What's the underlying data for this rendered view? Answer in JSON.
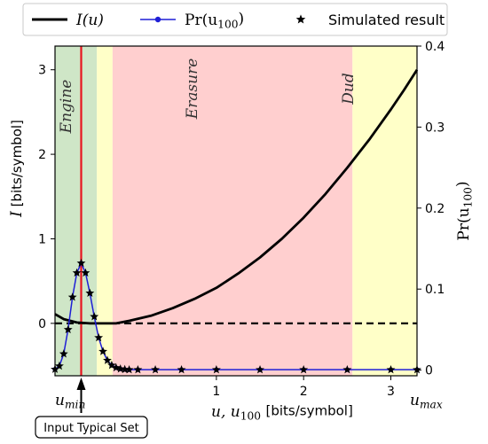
{
  "chart_data": {
    "type": "line",
    "x_range": [
      -0.85,
      3.3
    ],
    "y_left_range": [
      -0.62,
      3.28
    ],
    "y_right_range": [
      -0.007,
      0.4
    ],
    "x_ticks": [
      1,
      2,
      3
    ],
    "y_left_ticks": [
      0,
      1,
      2,
      3
    ],
    "y_right_ticks": [
      0,
      0.1,
      0.2,
      0.3,
      0.4
    ],
    "x_extra_labels": {
      "min": "u",
      "min_sub": "min",
      "max": "u",
      "max_sub": "max"
    },
    "xlabel": {
      "math": "u, u",
      "sub": "100",
      "units": "[bits/symbol]"
    },
    "ylabel_left": {
      "symbol": "I",
      "units": "[bits/symbol]"
    },
    "ylabel_right": {
      "text": "Pr(u",
      "sub": "100",
      "close": ")"
    },
    "regions": [
      {
        "label": "Engine",
        "from": -0.85,
        "to": -0.37,
        "color": "#cfe6c7"
      },
      {
        "label": "",
        "from": -0.37,
        "to": -0.19,
        "color": "#ffffc8"
      },
      {
        "label": "Erasure",
        "from": -0.19,
        "to": 2.56,
        "color": "#ffcfcf"
      },
      {
        "label": "Dud",
        "from": 2.56,
        "to": 3.3,
        "color": "#ffffc8"
      }
    ],
    "vertical_line": {
      "x": -0.55,
      "color": "#e8141f"
    },
    "horizontal_dashed_y": 0,
    "series": [
      {
        "name": "I(u)",
        "legend": {
          "math": "I(u)"
        },
        "color": "#000000",
        "axis": "left",
        "x": [
          -0.85,
          -0.75,
          -0.6,
          -0.45,
          -0.3,
          -0.15,
          0,
          0.25,
          0.5,
          0.75,
          1,
          1.25,
          1.5,
          1.75,
          2,
          2.25,
          2.5,
          2.75,
          3,
          3.15,
          3.3
        ],
        "y": [
          0.11,
          0.05,
          0.01,
          0.0,
          0.0,
          0.0,
          0.03,
          0.09,
          0.18,
          0.29,
          0.42,
          0.59,
          0.78,
          1.0,
          1.25,
          1.53,
          1.84,
          2.17,
          2.53,
          2.76,
          3.0
        ]
      },
      {
        "name": "Pr(u100)",
        "legend": {
          "text": "Pr(u",
          "sub": "100",
          "close": ")"
        },
        "color": "#1f1fd6",
        "axis": "right",
        "x": [
          -0.85,
          -0.8,
          -0.75,
          -0.7,
          -0.65,
          -0.6,
          -0.55,
          -0.5,
          -0.45,
          -0.4,
          -0.35,
          -0.3,
          -0.25,
          -0.2,
          -0.15,
          -0.1,
          -0.05,
          0.0,
          0.1,
          0.3,
          0.6,
          1.0,
          1.5,
          2.0,
          2.5,
          3.0,
          3.3
        ],
        "y": [
          0.001,
          0.005,
          0.02,
          0.05,
          0.09,
          0.12,
          0.132,
          0.12,
          0.095,
          0.066,
          0.04,
          0.023,
          0.012,
          0.006,
          0.003,
          0.0015,
          0.0008,
          0.0005,
          0.0005,
          0.0005,
          0.0005,
          0.0005,
          0.0005,
          0.0005,
          0.0005,
          0.0005,
          0.0005
        ]
      },
      {
        "name": "Simulated result",
        "legend": {
          "text": "Simulated result"
        },
        "color": "#000000",
        "axis": "right",
        "marker": "star",
        "x": [
          -0.85,
          -0.8,
          -0.75,
          -0.7,
          -0.65,
          -0.6,
          -0.55,
          -0.5,
          -0.45,
          -0.4,
          -0.35,
          -0.3,
          -0.25,
          -0.2,
          -0.15,
          -0.1,
          -0.05,
          0.0,
          0.1,
          0.3,
          0.6,
          1.0,
          1.5,
          2.0,
          2.5,
          3.0,
          3.3
        ],
        "y": [
          0.001,
          0.005,
          0.02,
          0.05,
          0.09,
          0.12,
          0.132,
          0.12,
          0.095,
          0.066,
          0.04,
          0.023,
          0.012,
          0.006,
          0.003,
          0.0015,
          0.0008,
          0.0005,
          0.0005,
          0.0005,
          0.0005,
          0.0005,
          0.0005,
          0.0005,
          0.0005,
          0.0005,
          0.0005
        ]
      }
    ],
    "legend_placement": "top",
    "annotation": {
      "text": "Input Typical Set",
      "target_x": -0.55
    }
  }
}
